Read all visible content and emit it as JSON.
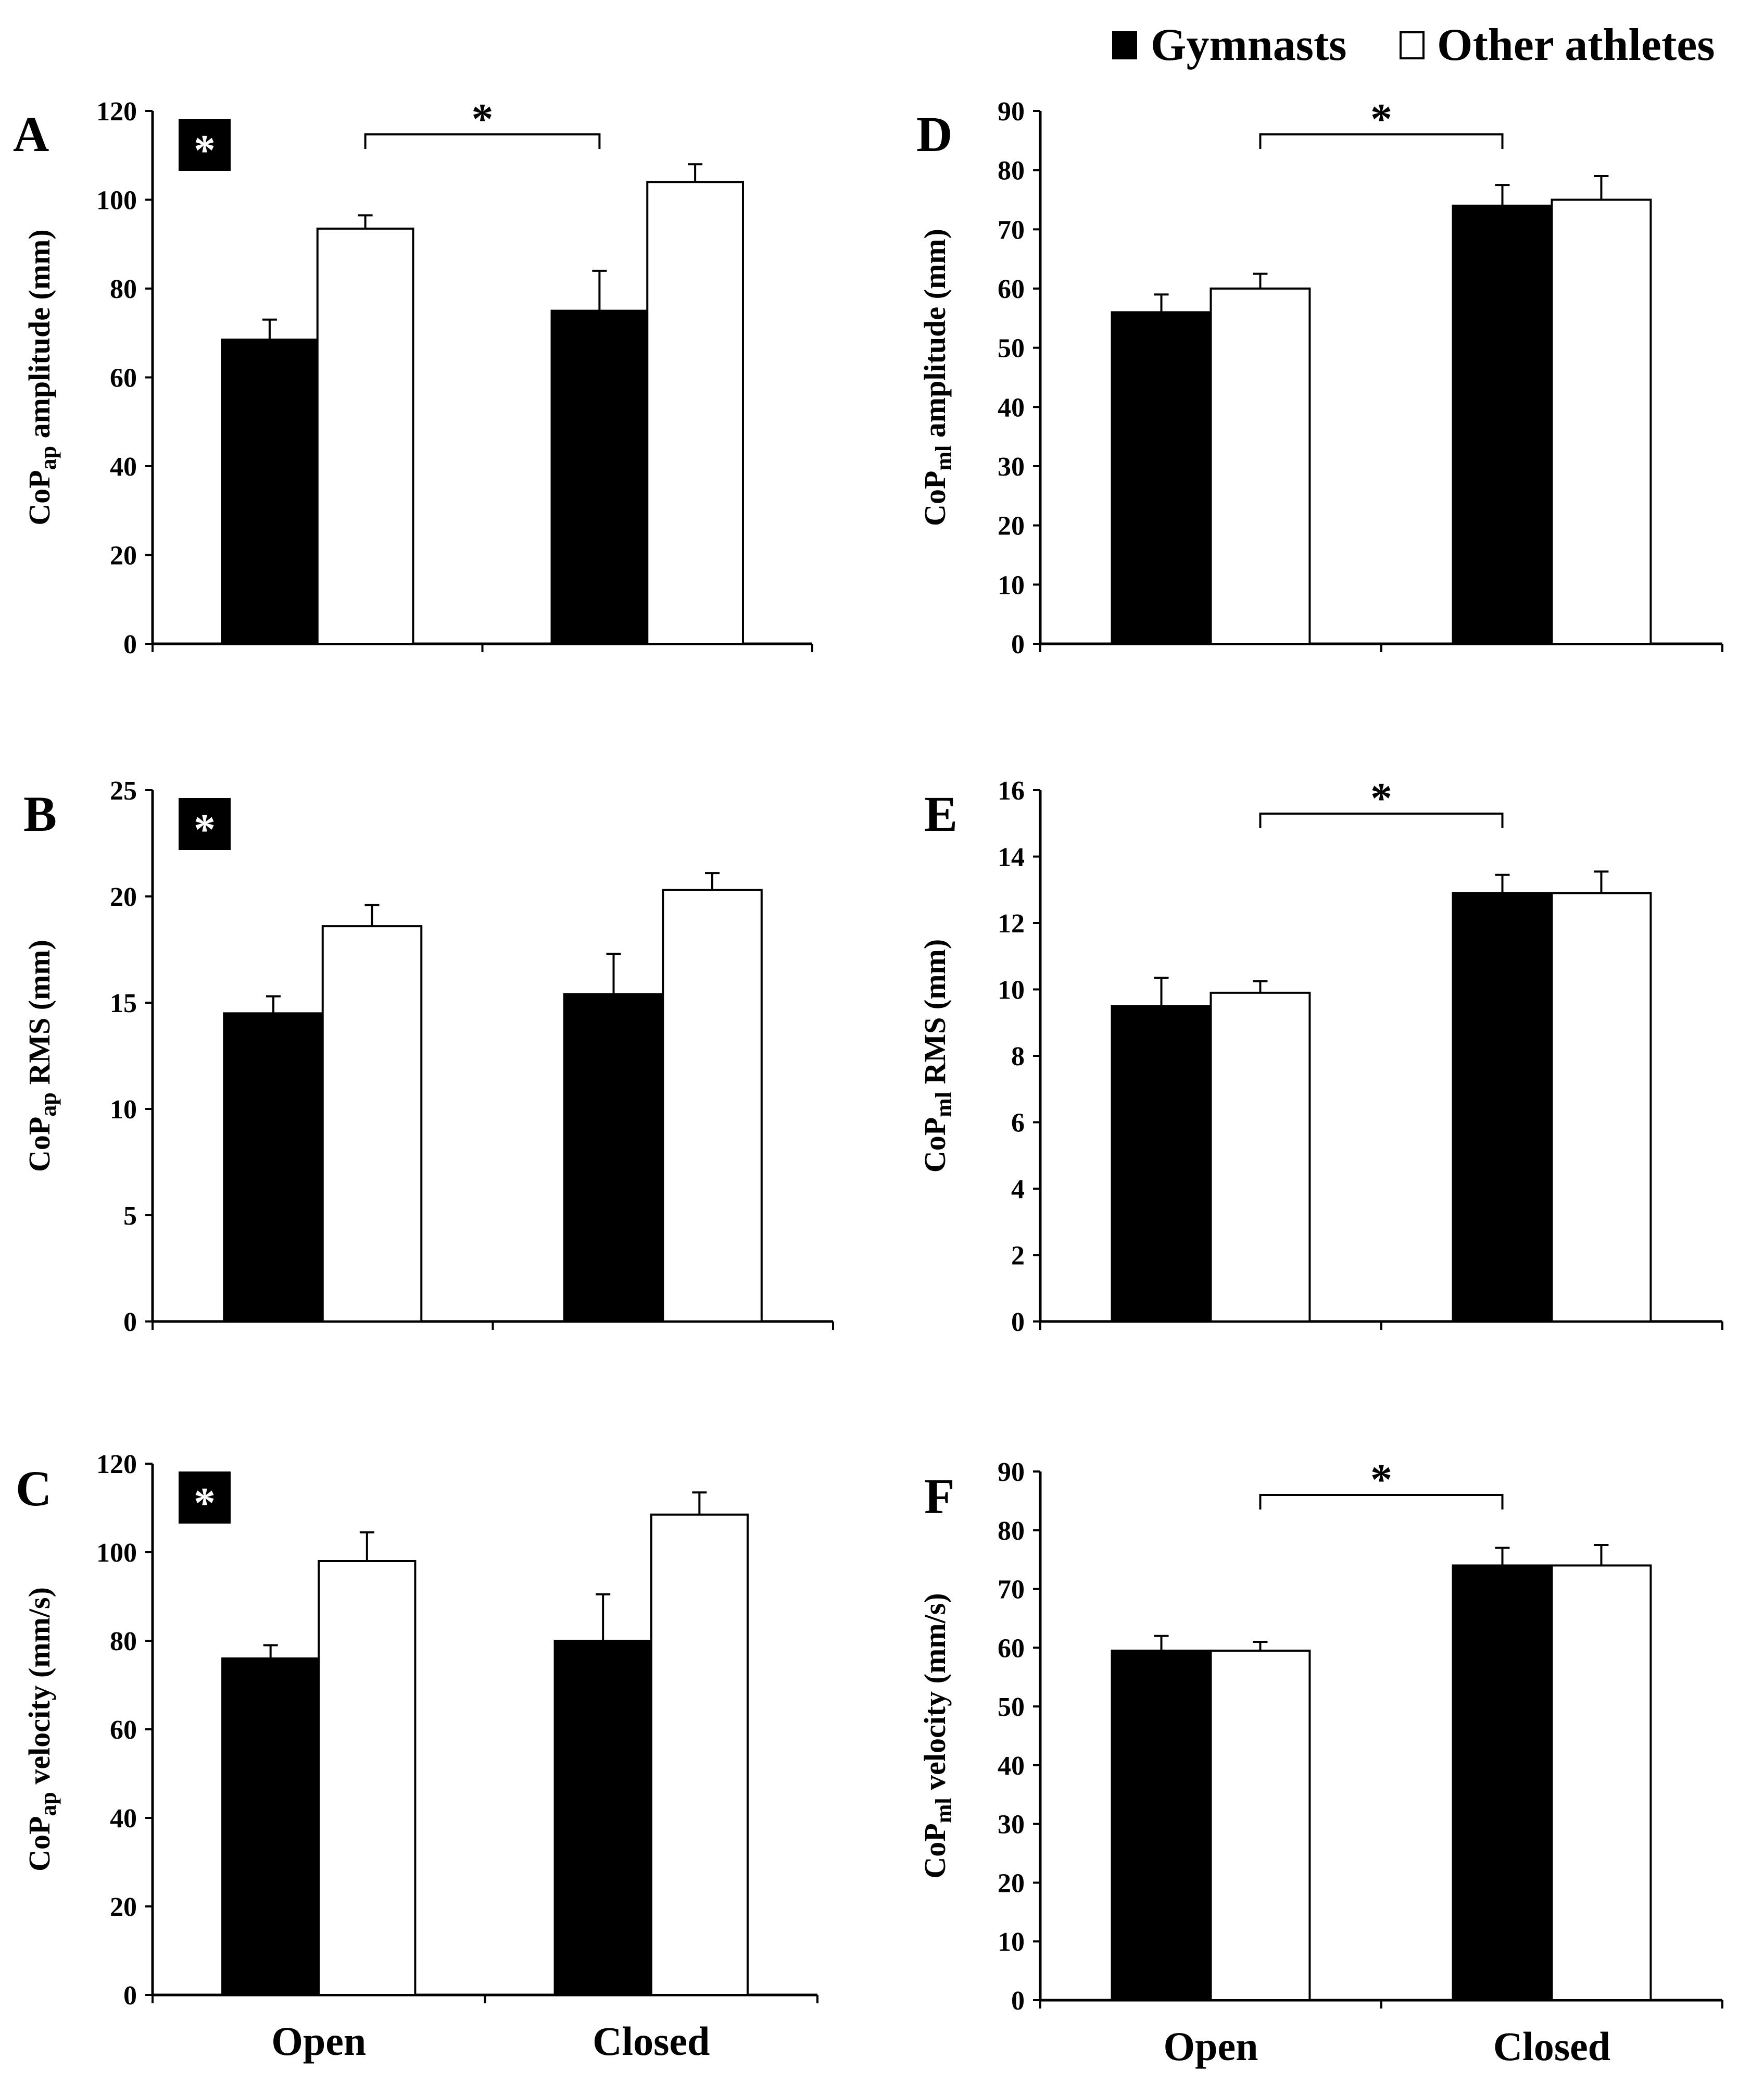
{
  "legend": {
    "series": [
      {
        "name": "Gymnasts",
        "color": "#000000"
      },
      {
        "name": "Other athletes",
        "color": "#ffffff"
      }
    ]
  },
  "group_significance_marker": "*",
  "chart_data": [
    {
      "panel": "A",
      "type": "bar",
      "ylabel_main": "CoP",
      "ylabel_sub": "ap",
      "ylabel_rest": " amplitude (mm)",
      "ylim": [
        0,
        120
      ],
      "ytick_values": [
        0,
        20,
        40,
        60,
        80,
        100,
        120
      ],
      "categories": [
        "Open",
        "Closed"
      ],
      "show_category_labels": false,
      "series": [
        {
          "name": "Gymnasts",
          "values": [
            68.5,
            75
          ],
          "errors": [
            4.5,
            9
          ]
        },
        {
          "name": "Other athletes",
          "values": [
            93.5,
            104
          ],
          "errors": [
            3,
            4
          ]
        }
      ],
      "group_effect_badge": true,
      "condition_bracket": {
        "from": "Open",
        "to": "Closed",
        "label": "*"
      }
    },
    {
      "panel": "B",
      "type": "bar",
      "ylabel_main": "CoP",
      "ylabel_sub": "ap",
      "ylabel_rest": " RMS (mm)",
      "ylim": [
        0,
        25
      ],
      "ytick_values": [
        0,
        5,
        10,
        15,
        20,
        25
      ],
      "categories": [
        "Open",
        "Closed"
      ],
      "show_category_labels": false,
      "series": [
        {
          "name": "Gymnasts",
          "values": [
            14.5,
            15.4
          ],
          "errors": [
            0.8,
            1.9
          ]
        },
        {
          "name": "Other athletes",
          "values": [
            18.6,
            20.3
          ],
          "errors": [
            1.0,
            0.8
          ]
        }
      ],
      "group_effect_badge": true,
      "condition_bracket": null
    },
    {
      "panel": "C",
      "type": "bar",
      "ylabel_main": "CoP",
      "ylabel_sub": "ap",
      "ylabel_rest": " velocity (mm/s)",
      "ylim": [
        0,
        120
      ],
      "ytick_values": [
        0,
        20,
        40,
        60,
        80,
        100,
        120
      ],
      "categories": [
        "Open",
        "Closed"
      ],
      "show_category_labels": true,
      "series": [
        {
          "name": "Gymnasts",
          "values": [
            76,
            80
          ],
          "errors": [
            3,
            10.5
          ]
        },
        {
          "name": "Other athletes",
          "values": [
            98,
            108.5
          ],
          "errors": [
            6.5,
            5
          ]
        }
      ],
      "group_effect_badge": true,
      "condition_bracket": null
    },
    {
      "panel": "D",
      "type": "bar",
      "ylabel_main": "CoP",
      "ylabel_sub": "ml",
      "ylabel_rest": " amplitude (mm)",
      "ylim": [
        0,
        90
      ],
      "ytick_values": [
        0,
        10,
        20,
        30,
        40,
        50,
        60,
        70,
        80,
        90
      ],
      "categories": [
        "Open",
        "Closed"
      ],
      "show_category_labels": false,
      "series": [
        {
          "name": "Gymnasts",
          "values": [
            56,
            74
          ],
          "errors": [
            3,
            3.5
          ]
        },
        {
          "name": "Other athletes",
          "values": [
            60,
            75
          ],
          "errors": [
            2.5,
            4
          ]
        }
      ],
      "group_effect_badge": false,
      "condition_bracket": {
        "from": "Open",
        "to": "Closed",
        "label": "*"
      }
    },
    {
      "panel": "E",
      "type": "bar",
      "ylabel_main": "CoP",
      "ylabel_sub": "ml",
      "ylabel_rest": " RMS (mm)",
      "ylim": [
        0,
        16
      ],
      "ytick_values": [
        0,
        2,
        4,
        6,
        8,
        10,
        12,
        14,
        16
      ],
      "categories": [
        "Open",
        "Closed"
      ],
      "show_category_labels": false,
      "series": [
        {
          "name": "Gymnasts",
          "values": [
            9.5,
            12.9
          ],
          "errors": [
            0.85,
            0.55
          ]
        },
        {
          "name": "Other athletes",
          "values": [
            9.9,
            12.9
          ],
          "errors": [
            0.35,
            0.65
          ]
        }
      ],
      "group_effect_badge": false,
      "condition_bracket": {
        "from": "Open",
        "to": "Closed",
        "label": "*"
      }
    },
    {
      "panel": "F",
      "type": "bar",
      "ylabel_main": "CoP",
      "ylabel_sub": "ml",
      "ylabel_rest": " velocity (mm/s)",
      "ylim": [
        0,
        90
      ],
      "ytick_values": [
        0,
        10,
        20,
        30,
        40,
        50,
        60,
        70,
        80,
        90
      ],
      "categories": [
        "Open",
        "Closed"
      ],
      "show_category_labels": true,
      "series": [
        {
          "name": "Gymnasts",
          "values": [
            59.5,
            74
          ],
          "errors": [
            2.5,
            3
          ]
        },
        {
          "name": "Other athletes",
          "values": [
            59.5,
            74
          ],
          "errors": [
            1.5,
            3.5
          ]
        }
      ],
      "group_effect_badge": false,
      "condition_bracket": {
        "from": "Open",
        "to": "Closed",
        "label": "*"
      }
    }
  ]
}
